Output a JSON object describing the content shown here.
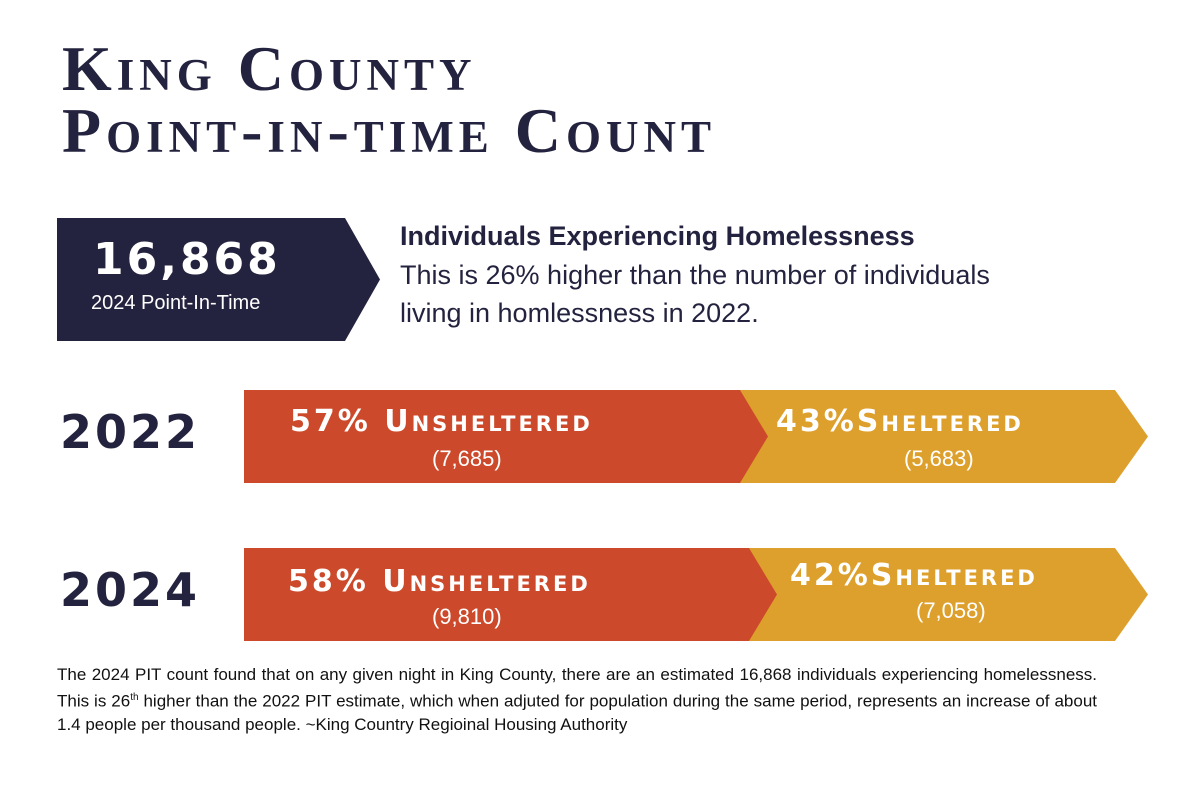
{
  "title": {
    "line1": "King County",
    "line2": "Point-in-time Count"
  },
  "stat": {
    "number": "16,868",
    "label": "2024 Point-In-Time"
  },
  "description": {
    "heading": "Individuals Experiencing Homelessness",
    "text": "This is 26% higher than the number of individuals living in homlessness in 2022."
  },
  "colors": {
    "navy": "#24233f",
    "unsheltered": "#cc4a2b",
    "sheltered": "#dea02c"
  },
  "rows": [
    {
      "year": "2022",
      "unsheltered_label": "57% Unsheltered",
      "unsheltered_count": "(7,685)",
      "sheltered_label": "43%Sheltered",
      "sheltered_count": "(5,683)",
      "unsheltered_pct": 57
    },
    {
      "year": "2024",
      "unsheltered_label": "58% Unsheltered",
      "unsheltered_count": "(9,810)",
      "sheltered_label": "42%Sheltered",
      "sheltered_count": "(7,058)",
      "unsheltered_pct": 58
    }
  ],
  "footer": {
    "part1": "The 2024 PIT count found that on any given night in King County, there are an estimated 16,868 individuals experiencing homelessness.  This is 26",
    "sup": "th",
    "part2": " higher than the 2022 PIT estimate, which when adjuted for population during the same period, represents an increase of about 1.4 people per thousand people.  ~King Country Regioinal Housing Authority"
  }
}
